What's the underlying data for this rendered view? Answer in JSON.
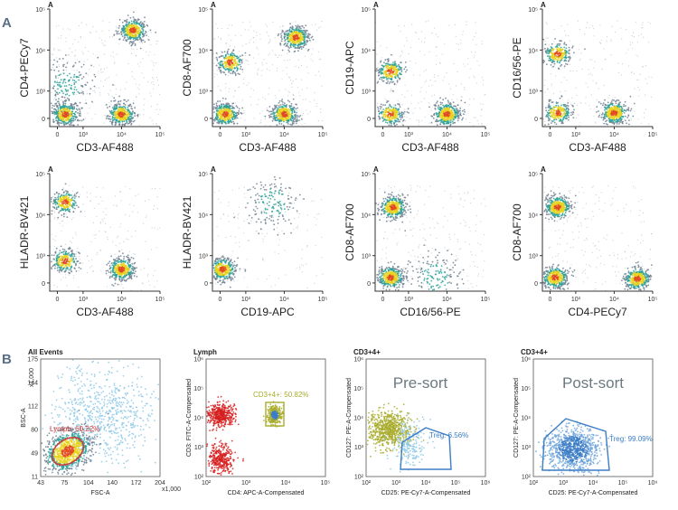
{
  "sections": {
    "a": "A",
    "b": "B"
  },
  "chart_data": [
    {
      "type": "scatter",
      "panel_label": "A",
      "xlabel": "CD3-AF488",
      "ylabel": "CD4-PECy7",
      "axis_scale": "biexponential",
      "x_ticks": [
        "0",
        "10³",
        "10⁴",
        "10⁵"
      ],
      "y_ticks": [
        "0",
        "10³",
        "10⁴",
        "10⁵"
      ],
      "populations": [
        {
          "x": 300,
          "y": 150,
          "density": "high"
        },
        {
          "x": 10000,
          "y": 150,
          "density": "high"
        },
        {
          "x": 20000,
          "y": 30000,
          "density": "high"
        },
        {
          "x": 400,
          "y": 1500,
          "density": "low"
        }
      ]
    },
    {
      "type": "scatter",
      "panel_label": "A",
      "xlabel": "CD3-AF488",
      "ylabel": "CD8-AF700",
      "axis_scale": "biexponential",
      "x_ticks": [
        "0",
        "10³",
        "10⁴",
        "10⁵"
      ],
      "y_ticks": [
        "0",
        "10³",
        "10⁴",
        "10⁵"
      ],
      "populations": [
        {
          "x": 200,
          "y": 150,
          "density": "high"
        },
        {
          "x": 10000,
          "y": 150,
          "density": "high"
        },
        {
          "x": 20000,
          "y": 20000,
          "density": "high"
        },
        {
          "x": 400,
          "y": 5000,
          "density": "medium"
        }
      ]
    },
    {
      "type": "scatter",
      "panel_label": "A",
      "xlabel": "CD3-AF488",
      "ylabel": "CD19-APC",
      "axis_scale": "biexponential",
      "x_ticks": [
        "0",
        "10³",
        "10⁴",
        "10⁵"
      ],
      "y_ticks": [
        "0",
        "10³",
        "10⁴",
        "10⁵"
      ],
      "populations": [
        {
          "x": 300,
          "y": 150,
          "density": "medium"
        },
        {
          "x": 10000,
          "y": 150,
          "density": "high"
        },
        {
          "x": 300,
          "y": 3000,
          "density": "medium"
        }
      ]
    },
    {
      "type": "scatter",
      "panel_label": "A",
      "xlabel": "CD3-AF488",
      "ylabel": "CD16/56-PE",
      "axis_scale": "biexponential",
      "x_ticks": [
        "0",
        "10³",
        "10⁴",
        "10⁵"
      ],
      "y_ticks": [
        "0",
        "10³",
        "10⁴",
        "10⁵"
      ],
      "populations": [
        {
          "x": 300,
          "y": 200,
          "density": "medium"
        },
        {
          "x": 10000,
          "y": 200,
          "density": "high"
        },
        {
          "x": 300,
          "y": 8000,
          "density": "medium"
        }
      ]
    },
    {
      "type": "scatter",
      "panel_label": "A",
      "xlabel": "CD3-AF488",
      "ylabel": "HLADR-BV421",
      "axis_scale": "biexponential",
      "x_ticks": [
        "0",
        "10³",
        "10⁴",
        "10⁵"
      ],
      "y_ticks": [
        "0",
        "10³",
        "10⁴",
        "10⁵"
      ],
      "populations": [
        {
          "x": 300,
          "y": 800,
          "density": "medium"
        },
        {
          "x": 10000,
          "y": 500,
          "density": "high"
        },
        {
          "x": 300,
          "y": 20000,
          "density": "medium"
        }
      ]
    },
    {
      "type": "scatter",
      "panel_label": "A",
      "xlabel": "CD19-APC",
      "ylabel": "HLADR-BV421",
      "axis_scale": "biexponential",
      "x_ticks": [
        "0",
        "10³",
        "10⁴",
        "10⁵"
      ],
      "y_ticks": [
        "0",
        "10³",
        "10⁴",
        "10⁵"
      ],
      "populations": [
        {
          "x": 100,
          "y": 500,
          "density": "high"
        },
        {
          "x": 5000,
          "y": 20000,
          "density": "low"
        }
      ]
    },
    {
      "type": "scatter",
      "panel_label": "A",
      "xlabel": "CD16/56-PE",
      "ylabel": "CD8-AF700",
      "axis_scale": "biexponential",
      "x_ticks": [
        "0",
        "10³",
        "10⁴",
        "10⁵"
      ],
      "y_ticks": [
        "0",
        "10³",
        "10⁴",
        "10⁵"
      ],
      "populations": [
        {
          "x": 300,
          "y": 200,
          "density": "high"
        },
        {
          "x": 400,
          "y": 15000,
          "density": "high"
        },
        {
          "x": 5000,
          "y": 200,
          "density": "low"
        }
      ]
    },
    {
      "type": "scatter",
      "panel_label": "A",
      "xlabel": "CD4-PECy7",
      "ylabel": "CD8-AF700",
      "axis_scale": "biexponential",
      "x_ticks": [
        "0",
        "10³",
        "10⁴",
        "10⁵"
      ],
      "y_ticks": [
        "0",
        "10³",
        "10⁴",
        "10⁵"
      ],
      "populations": [
        {
          "x": 200,
          "y": 200,
          "density": "high"
        },
        {
          "x": 300,
          "y": 15000,
          "density": "high"
        },
        {
          "x": 40000,
          "y": 150,
          "density": "high"
        }
      ]
    },
    {
      "type": "scatter",
      "title": "All Events",
      "xlabel": "FSC-A",
      "ylabel": "BSC-A",
      "x_ticks": [
        "43",
        "75",
        "104",
        "140",
        "172",
        "204"
      ],
      "y_ticks": [
        "11",
        "49",
        "80",
        "112",
        "144",
        "175"
      ],
      "x_mult": "x1,000",
      "y_mult": "x1,000",
      "gate": {
        "name": "Lymph",
        "percent": "60.22%",
        "label": "Lymph: 60.22%"
      }
    },
    {
      "type": "scatter",
      "title": "Lymph",
      "xlabel": "CD4: APC-A-Compensated",
      "ylabel": "CD3: FITC-A-Compensated",
      "axis_scale": "log",
      "x_ticks": [
        "10²",
        "10³",
        "10⁴",
        "10⁵"
      ],
      "y_ticks": [
        "10²",
        "10³",
        "10⁴",
        "10⁵",
        "10⁶"
      ],
      "gate": {
        "name": "CD3+4+",
        "percent": "50.82%",
        "label": "CD3+4+: 50.82%"
      }
    },
    {
      "type": "scatter",
      "title": "CD3+4+",
      "annotation": "Pre-sort",
      "xlabel": "CD25: PE-Cy7-A-Compensated",
      "ylabel": "CD127: PE-A-Compensated",
      "axis_scale": "log",
      "x_ticks": [
        "10²",
        "10³",
        "10⁴",
        "10⁵",
        "10⁶"
      ],
      "y_ticks": [
        "10²",
        "10³",
        "10⁴",
        "10⁵",
        "10⁶"
      ],
      "gate": {
        "name": "Treg",
        "percent": "6.56%",
        "label": "Treg: 6.56%"
      }
    },
    {
      "type": "scatter",
      "title": "CD3+4+",
      "annotation": "Post-sort",
      "xlabel": "CD25: PE-Cy7-A-Compensated",
      "ylabel": "CD127: PE-A-Compensated",
      "axis_scale": "log",
      "x_ticks": [
        "10²",
        "10³",
        "10⁴",
        "10⁵",
        "10⁶"
      ],
      "y_ticks": [
        "10²",
        "10³",
        "10⁴",
        "10⁵",
        "10⁶"
      ],
      "gate": {
        "name": "Treg",
        "percent": "99.09%",
        "label": "Treg: 99.09%"
      }
    }
  ],
  "colors": {
    "density_low": "#708090",
    "density_mid": "#2aa198",
    "density_high": "#e8d220",
    "density_peak": "#e24a1e",
    "red_pop": "#d62020",
    "olive": "#a8ac2c",
    "blue": "#3b7dc7",
    "light_blue": "#8ec9e8",
    "gate_red": "#d03a3a"
  }
}
